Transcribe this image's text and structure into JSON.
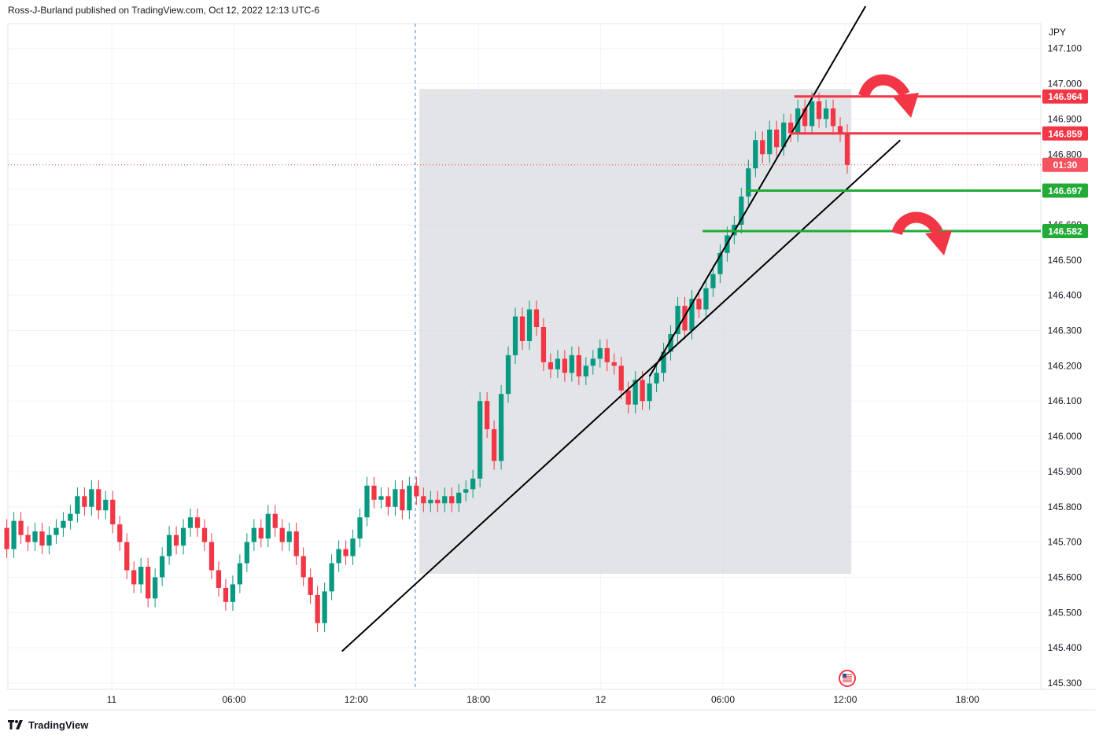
{
  "header": {
    "publisher_line": "Ross-J-Burland published on TradingView.com, Oct 12, 2022 12:13 UTC-6"
  },
  "footer": {
    "brand": "TradingView"
  },
  "chart_data": {
    "type": "candlestick",
    "currency_label": "JPY",
    "y_axis": {
      "ylim": [
        145.25,
        147.15
      ],
      "ticks": [
        "145.300",
        "145.400",
        "145.500",
        "145.600",
        "145.700",
        "145.800",
        "145.900",
        "146.000",
        "146.100",
        "146.200",
        "146.300",
        "146.400",
        "146.500",
        "146.600",
        "146.700",
        "146.800",
        "146.900",
        "147.000",
        "147.100"
      ]
    },
    "x_axis": {
      "ticks": [
        {
          "label": "11",
          "t": 0
        },
        {
          "label": "06:00",
          "t": 6
        },
        {
          "label": "12:00",
          "t": 12
        },
        {
          "label": "18:00",
          "t": 18
        },
        {
          "label": "12",
          "t": 24
        },
        {
          "label": "06:00",
          "t": 30
        },
        {
          "label": "12:00",
          "t": 36
        },
        {
          "label": "18:00",
          "t": 42
        }
      ],
      "range_hours": [
        -5.2,
        47.5
      ]
    },
    "price_labels": [
      {
        "text": "146.964",
        "value": 146.964,
        "color": "#f23645"
      },
      {
        "text": "146.859",
        "value": 146.859,
        "color": "#f23645"
      },
      {
        "text": "01:30",
        "value": 146.77,
        "color": "#f7525f"
      },
      {
        "text": "146.697",
        "value": 146.697,
        "color": "#22ab37"
      },
      {
        "text": "146.582",
        "value": 146.582,
        "color": "#22ab37"
      }
    ],
    "horizontal_levels": [
      {
        "value": 146.964,
        "t_start": 33.5,
        "color": "#f23645"
      },
      {
        "value": 146.859,
        "t_start": 33.3,
        "color": "#f23645"
      },
      {
        "value": 146.697,
        "t_start": 31.2,
        "color": "#22ab37"
      },
      {
        "value": 146.582,
        "t_start": 29.0,
        "color": "#22ab37"
      }
    ],
    "current_price": 146.77,
    "highlight_box": {
      "t_start": 15.1,
      "t_end": 36.3,
      "price_low": 145.61,
      "price_high": 146.985
    },
    "session_divider_t": 14.9,
    "trendlines": [
      {
        "t1": 11.3,
        "p1": 145.39,
        "t2": 38.7,
        "p2": 146.84
      },
      {
        "t1": 26.4,
        "p1": 146.17,
        "t2": 37.0,
        "p2": 147.22
      }
    ],
    "candles_open_close": [
      [
        145.74,
        145.68
      ],
      [
        145.68,
        145.76
      ],
      [
        145.76,
        145.72
      ],
      [
        145.72,
        145.7
      ],
      [
        145.7,
        145.73
      ],
      [
        145.73,
        145.69
      ],
      [
        145.69,
        145.72
      ],
      [
        145.72,
        145.74
      ],
      [
        145.74,
        145.76
      ],
      [
        145.76,
        145.78
      ],
      [
        145.78,
        145.83
      ],
      [
        145.83,
        145.8
      ],
      [
        145.8,
        145.85
      ],
      [
        145.85,
        145.79
      ],
      [
        145.79,
        145.82
      ],
      [
        145.82,
        145.75
      ],
      [
        145.75,
        145.7
      ],
      [
        145.7,
        145.62
      ],
      [
        145.62,
        145.58
      ],
      [
        145.58,
        145.63
      ],
      [
        145.63,
        145.54
      ],
      [
        145.54,
        145.6
      ],
      [
        145.6,
        145.66
      ],
      [
        145.66,
        145.72
      ],
      [
        145.72,
        145.69
      ],
      [
        145.69,
        145.74
      ],
      [
        145.74,
        145.77
      ],
      [
        145.77,
        145.74
      ],
      [
        145.74,
        145.7
      ],
      [
        145.7,
        145.62
      ],
      [
        145.62,
        145.57
      ],
      [
        145.57,
        145.53
      ],
      [
        145.53,
        145.58
      ],
      [
        145.58,
        145.64
      ],
      [
        145.64,
        145.7
      ],
      [
        145.7,
        145.74
      ],
      [
        145.74,
        145.71
      ],
      [
        145.71,
        145.78
      ],
      [
        145.78,
        145.74
      ],
      [
        145.74,
        145.7
      ],
      [
        145.7,
        145.73
      ],
      [
        145.73,
        145.66
      ],
      [
        145.66,
        145.6
      ],
      [
        145.6,
        145.55
      ],
      [
        145.55,
        145.47
      ],
      [
        145.47,
        145.56
      ],
      [
        145.56,
        145.64
      ],
      [
        145.64,
        145.68
      ],
      [
        145.68,
        145.66
      ],
      [
        145.66,
        145.71
      ],
      [
        145.71,
        145.77
      ],
      [
        145.77,
        145.86
      ],
      [
        145.86,
        145.82
      ],
      [
        145.82,
        145.83
      ],
      [
        145.83,
        145.8
      ],
      [
        145.8,
        145.85
      ],
      [
        145.85,
        145.79
      ],
      [
        145.79,
        145.86
      ],
      [
        145.86,
        145.83
      ],
      [
        145.83,
        145.81
      ],
      [
        145.81,
        145.82
      ],
      [
        145.82,
        145.81
      ],
      [
        145.81,
        145.83
      ],
      [
        145.83,
        145.81
      ],
      [
        145.81,
        145.84
      ],
      [
        145.84,
        145.85
      ],
      [
        145.85,
        145.88
      ],
      [
        145.88,
        146.1
      ],
      [
        146.1,
        146.02
      ],
      [
        146.02,
        145.93
      ],
      [
        145.93,
        146.12
      ],
      [
        146.12,
        146.23
      ],
      [
        146.23,
        146.34
      ],
      [
        146.34,
        146.27
      ],
      [
        146.27,
        146.36
      ],
      [
        146.36,
        146.31
      ],
      [
        146.31,
        146.21
      ],
      [
        146.21,
        146.19
      ],
      [
        146.19,
        146.22
      ],
      [
        146.22,
        146.18
      ],
      [
        146.18,
        146.23
      ],
      [
        146.23,
        146.17
      ],
      [
        146.17,
        146.2
      ],
      [
        146.2,
        146.22
      ],
      [
        146.22,
        146.25
      ],
      [
        146.25,
        146.21
      ],
      [
        146.21,
        146.2
      ],
      [
        146.2,
        146.13
      ],
      [
        146.13,
        146.09
      ],
      [
        146.09,
        146.16
      ],
      [
        146.16,
        146.1
      ],
      [
        146.1,
        146.15
      ],
      [
        146.15,
        146.18
      ],
      [
        146.18,
        146.24
      ],
      [
        146.24,
        146.29
      ],
      [
        146.29,
        146.37
      ],
      [
        146.37,
        146.3
      ],
      [
        146.3,
        146.39
      ],
      [
        146.39,
        146.36
      ],
      [
        146.36,
        146.42
      ],
      [
        146.42,
        146.46
      ],
      [
        146.46,
        146.52
      ],
      [
        146.52,
        146.57
      ],
      [
        146.57,
        146.6
      ],
      [
        146.6,
        146.68
      ],
      [
        146.68,
        146.76
      ],
      [
        146.76,
        146.84
      ],
      [
        146.84,
        146.8
      ],
      [
        146.8,
        146.87
      ],
      [
        146.87,
        146.82
      ],
      [
        146.82,
        146.89
      ],
      [
        146.89,
        146.86
      ],
      [
        146.86,
        146.93
      ],
      [
        146.93,
        146.88
      ],
      [
        146.88,
        146.95
      ],
      [
        146.95,
        146.9
      ],
      [
        146.9,
        146.93
      ],
      [
        146.93,
        146.88
      ],
      [
        146.88,
        146.86
      ],
      [
        146.86,
        146.77
      ]
    ]
  }
}
